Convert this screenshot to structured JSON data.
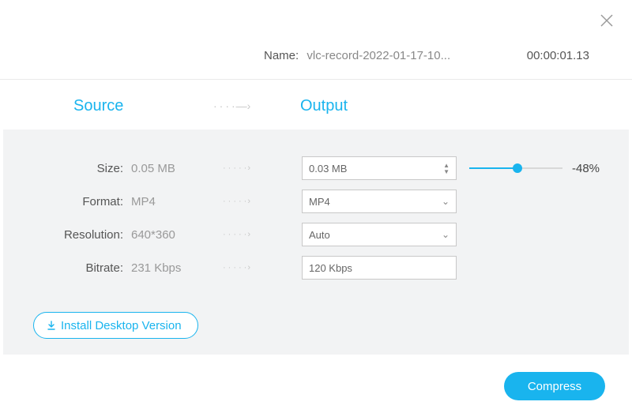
{
  "colors": {
    "accent": "#19b4ee",
    "text": "#555",
    "muted": "#999",
    "border": "#c8c8c8",
    "panel_bg": "#f2f3f4"
  },
  "header": {
    "name_label": "Name:",
    "filename": "vlc-record-2022-01-17-10...",
    "duration": "00:00:01.13"
  },
  "tabs": {
    "source": "Source",
    "output": "Output"
  },
  "rows": {
    "size": {
      "label": "Size:",
      "source": "0.05 MB",
      "output": "0.03 MB",
      "reduction_pct": "-48%",
      "slider_percent": 52
    },
    "format": {
      "label": "Format:",
      "source": "MP4",
      "output": "MP4"
    },
    "resolution": {
      "label": "Resolution:",
      "source": "640*360",
      "output": "Auto"
    },
    "bitrate": {
      "label": "Bitrate:",
      "source": "231 Kbps",
      "output": "120 Kbps"
    }
  },
  "buttons": {
    "install": "Install Desktop Version",
    "compress": "Compress"
  }
}
